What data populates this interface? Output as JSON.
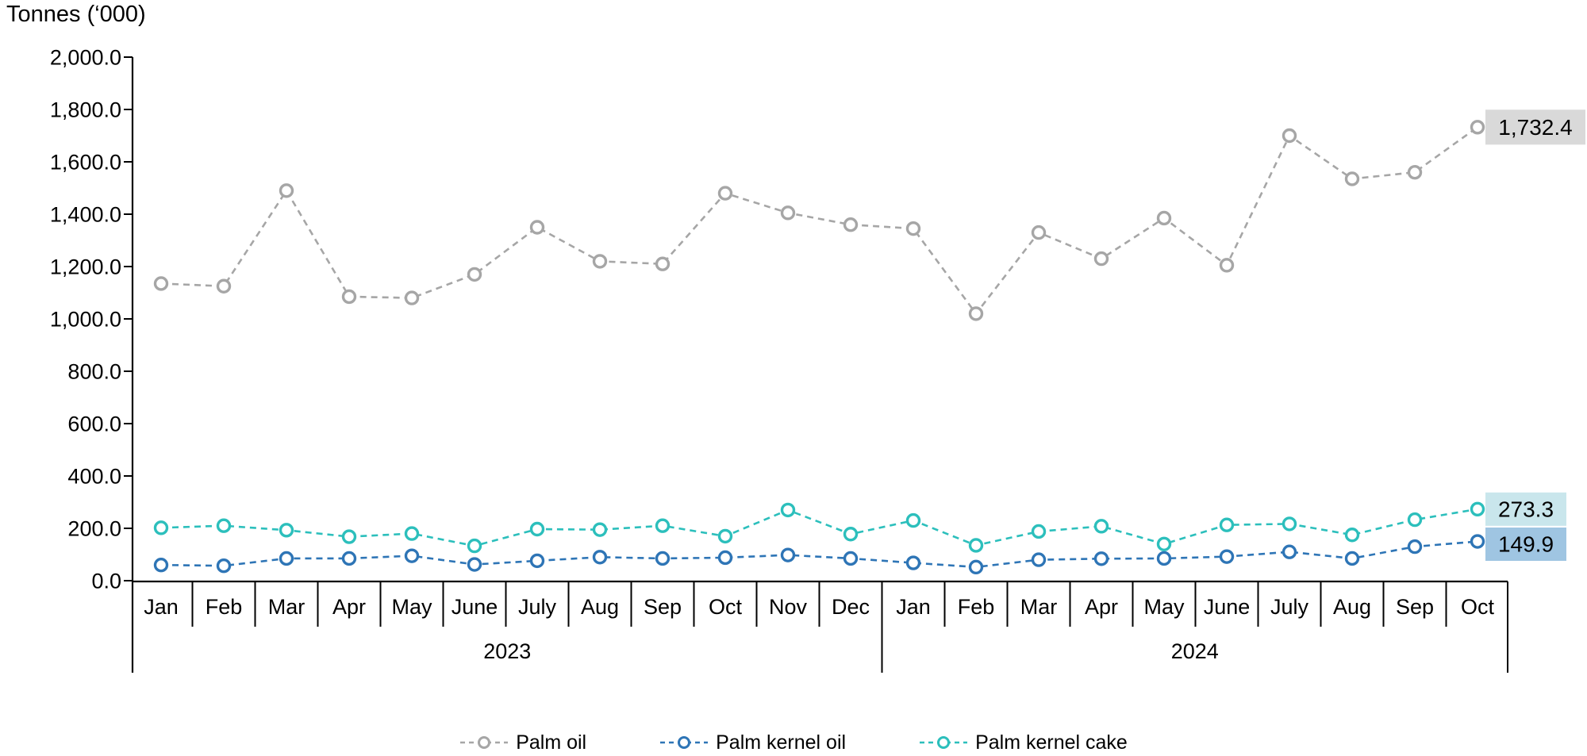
{
  "title": "Tonnes (‘000)",
  "y_axis": {
    "unit_label": "Tonnes (‘000)",
    "tick_labels": [
      "2,000.0",
      "1,800.0",
      "1,600.0",
      "1,400.0",
      "1,200.0",
      "1,000.0",
      "800.0",
      "600.0",
      "400.0",
      "200.0",
      "0.0"
    ],
    "min": 0,
    "max": 2000,
    "step": 200
  },
  "x_axis": {
    "year_groups": [
      {
        "label": "2023",
        "months": [
          "Jan",
          "Feb",
          "Mar",
          "Apr",
          "May",
          "June",
          "July",
          "Aug",
          "Sep",
          "Oct",
          "Nov",
          "Dec"
        ]
      },
      {
        "label": "2024",
        "months": [
          "Jan",
          "Feb",
          "Mar",
          "Apr",
          "May",
          "June",
          "July",
          "Aug",
          "Sep",
          "Oct"
        ]
      }
    ]
  },
  "legend": {
    "position": "bottom",
    "items": [
      "Palm oil",
      "Palm kernel oil",
      "Palm kernel cake"
    ]
  },
  "end_labels": {
    "palm_oil": "1,732.4",
    "palm_kernel_cake": "273.3",
    "palm_kernel_oil": "149.9"
  },
  "colors": {
    "palm_oil": "#a6a6a6",
    "palm_kernel_oil": "#2e75b6",
    "palm_kernel_cake": "#2cbfbc",
    "axis": "#000000",
    "palm_oil_label_bg": "#d9d9d9",
    "palm_kernel_cake_label_bg": "#c9e6ec",
    "palm_kernel_oil_label_bg": "#9fc5e2"
  },
  "chart_data": {
    "type": "line",
    "title": "Tonnes (‘000)",
    "line_style": "dashed",
    "marker": "open-circle",
    "grid": false,
    "legend_position": "bottom",
    "ylim": [
      0,
      2000
    ],
    "y_tick_step": 200,
    "y_tick_labels": [
      "2,000.0",
      "1,800.0",
      "1,600.0",
      "1,400.0",
      "1,200.0",
      "1,000.0",
      "800.0",
      "600.0",
      "400.0",
      "200.0",
      "0.0"
    ],
    "x_groups": [
      {
        "year": "2023",
        "months": [
          "Jan",
          "Feb",
          "Mar",
          "Apr",
          "May",
          "June",
          "July",
          "Aug",
          "Sep",
          "Oct",
          "Nov",
          "Dec"
        ]
      },
      {
        "year": "2024",
        "months": [
          "Jan",
          "Feb",
          "Mar",
          "Apr",
          "May",
          "June",
          "July",
          "Aug",
          "Sep",
          "Oct"
        ]
      }
    ],
    "categories": [
      "Jan 2023",
      "Feb 2023",
      "Mar 2023",
      "Apr 2023",
      "May 2023",
      "June 2023",
      "July 2023",
      "Aug 2023",
      "Sep 2023",
      "Oct 2023",
      "Nov 2023",
      "Dec 2023",
      "Jan 2024",
      "Feb 2024",
      "Mar 2024",
      "Apr 2024",
      "May 2024",
      "June 2024",
      "July 2024",
      "Aug 2024",
      "Sep 2024",
      "Oct 2024"
    ],
    "series": [
      {
        "name": "Palm oil",
        "slug": "palm-oil",
        "color": "#a6a6a6",
        "end_label": "1,732.4",
        "end_label_bg": "#d9d9d9",
        "values": [
          1135,
          1125,
          1490,
          1085,
          1080,
          1170,
          1350,
          1220,
          1210,
          1480,
          1405,
          1360,
          1345,
          1020,
          1330,
          1230,
          1385,
          1205,
          1700,
          1535,
          1560,
          1732.4
        ]
      },
      {
        "name": "Palm kernel oil",
        "slug": "palm-kernel-oil",
        "color": "#2e75b6",
        "end_label": "149.9",
        "end_label_bg": "#9fc5e2",
        "values": [
          60,
          57,
          85,
          85,
          95,
          62,
          76,
          90,
          85,
          88,
          98,
          85,
          68,
          52,
          80,
          84,
          85,
          92,
          110,
          85,
          130,
          149.9
        ]
      },
      {
        "name": "Palm kernel cake",
        "slug": "palm-kernel-cake",
        "color": "#2cbfbc",
        "end_label": "273.3",
        "end_label_bg": "#c9e6ec",
        "values": [
          202,
          210,
          193,
          168,
          180,
          133,
          197,
          195,
          210,
          170,
          270,
          178,
          230,
          135,
          188,
          208,
          140,
          213,
          217,
          175,
          233,
          273.3
        ]
      }
    ]
  }
}
